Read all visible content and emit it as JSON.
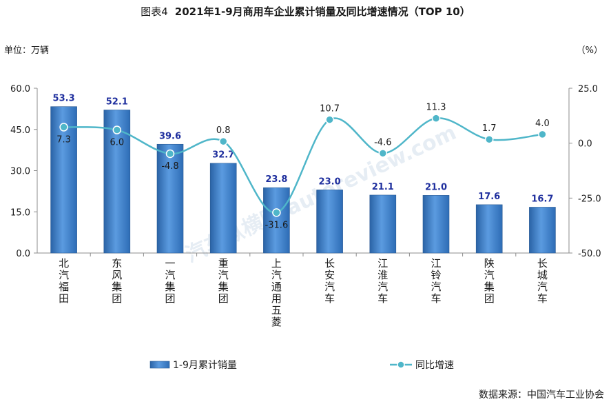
{
  "figure_label": "图表4",
  "title": "2021年1-9月商用车企业累计销量及同比增速情况（TOP 10）",
  "left_unit": "单位：万辆",
  "right_unit": "（%）",
  "source": "数据来源：中国汽车工业协会",
  "watermark": "汽车纵横网 autoreview.com",
  "colors": {
    "bar": "#3a7fc4",
    "bar_label": "#1f2f9e",
    "line": "#4fb6c9",
    "marker_fill": "#4fb6c9"
  },
  "chart_data": {
    "type": "bar+line",
    "categories": [
      "北汽福田",
      "东风集团",
      "一汽集团",
      "重汽集团",
      "上汽通用五菱",
      "长安汽车",
      "江淮汽车",
      "江铃汽车",
      "陕汽集团",
      "长城汽车"
    ],
    "series": [
      {
        "name": "1-9月累计销量",
        "axis": "left",
        "type": "bar",
        "values": [
          53.3,
          52.1,
          39.6,
          32.7,
          23.8,
          23.0,
          21.1,
          21.0,
          17.6,
          16.7
        ],
        "labels": [
          "53.3",
          "52.1",
          "39.6",
          "32.7",
          "23.8",
          "23.0",
          "21.1",
          "21.0",
          "17.6",
          "16.7"
        ]
      },
      {
        "name": "同比增速",
        "axis": "right",
        "type": "line",
        "values": [
          7.3,
          6.0,
          -4.8,
          0.8,
          -31.6,
          10.7,
          -4.6,
          11.3,
          1.7,
          4.0
        ],
        "labels": [
          "7.3",
          "6.0",
          "-4.8",
          "0.8",
          "-31.6",
          "10.7",
          "-4.6",
          "11.3",
          "1.7",
          "4.0"
        ]
      }
    ],
    "left_axis": {
      "min": 0,
      "max": 60,
      "ticks": [
        "0.0",
        "15.0",
        "30.0",
        "45.0",
        "60.0"
      ]
    },
    "right_axis": {
      "min": -50,
      "max": 25,
      "ticks": [
        "-50.0",
        "-25.0",
        "0.0",
        "25.0"
      ]
    },
    "legend_placement": "bottom",
    "grid": false
  }
}
